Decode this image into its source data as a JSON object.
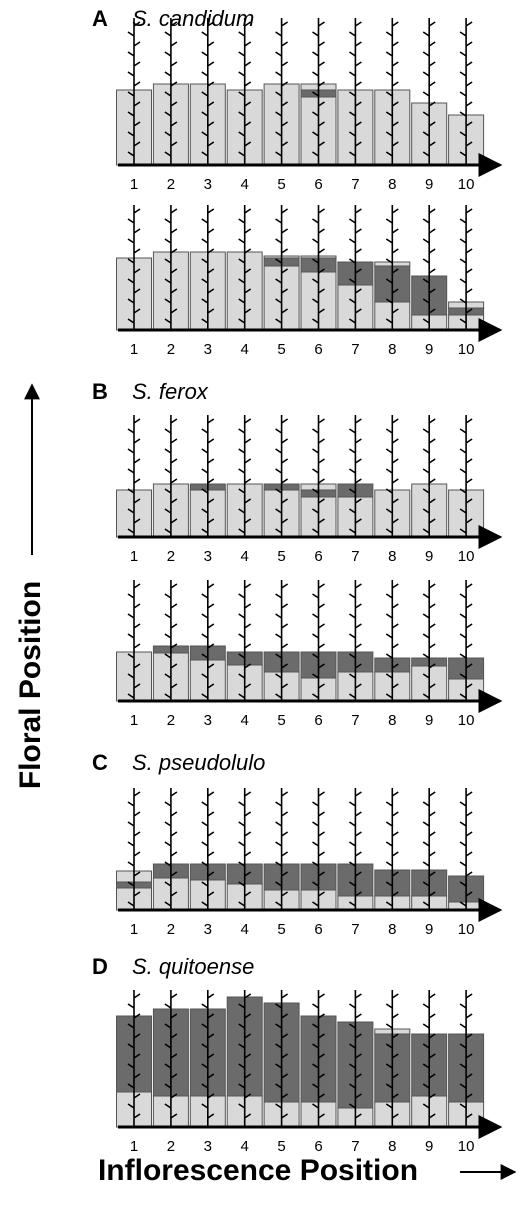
{
  "axis_labels": {
    "y": "Floral Position",
    "x": "Inflorescence Position"
  },
  "chart_data": [
    {
      "type": "bar",
      "label": "A",
      "title": "S. candidum",
      "categories": [
        "1",
        "2",
        "3",
        "4",
        "5",
        "6",
        "7",
        "8",
        "9",
        "10"
      ],
      "series": [
        {
          "color": "#d9d9d9",
          "values": [
            75,
            81,
            81,
            75,
            81,
            68,
            75,
            75,
            62,
            50
          ]
        },
        {
          "color": "#6b6b6b",
          "values": [
            0,
            0,
            0,
            0,
            0,
            7,
            0,
            0,
            0,
            0
          ]
        },
        {
          "color": "#d9d9d9",
          "values": [
            0,
            0,
            0,
            0,
            0,
            6,
            0,
            0,
            0,
            0
          ]
        }
      ]
    },
    {
      "type": "bar",
      "categories": [
        "1",
        "2",
        "3",
        "4",
        "5",
        "6",
        "7",
        "8",
        "9",
        "10"
      ],
      "series": [
        {
          "color": "#d9d9d9",
          "values": [
            72,
            78,
            78,
            78,
            64,
            58,
            45,
            28,
            15,
            15
          ]
        },
        {
          "color": "#6b6b6b",
          "values": [
            0,
            0,
            0,
            0,
            8,
            14,
            23,
            36,
            39,
            7
          ]
        },
        {
          "color": "#d9d9d9",
          "values": [
            0,
            0,
            0,
            0,
            2,
            2,
            0,
            4,
            0,
            6
          ]
        }
      ]
    },
    {
      "type": "bar",
      "label": "B",
      "title": "S. ferox",
      "categories": [
        "1",
        "2",
        "3",
        "4",
        "5",
        "6",
        "7",
        "8",
        "9",
        "10"
      ],
      "series": [
        {
          "color": "#d9d9d9",
          "values": [
            47,
            53,
            47,
            53,
            47,
            40,
            40,
            47,
            53,
            47
          ]
        },
        {
          "color": "#6b6b6b",
          "values": [
            0,
            0,
            6,
            0,
            6,
            7,
            13,
            0,
            0,
            0
          ]
        },
        {
          "color": "#d9d9d9",
          "values": [
            0,
            0,
            0,
            0,
            0,
            6,
            0,
            0,
            0,
            0
          ]
        }
      ]
    },
    {
      "type": "bar",
      "categories": [
        "1",
        "2",
        "3",
        "4",
        "5",
        "6",
        "7",
        "8",
        "9",
        "10"
      ],
      "series": [
        {
          "color": "#d9d9d9",
          "values": [
            49,
            48,
            41,
            36,
            29,
            23,
            29,
            29,
            35,
            22
          ]
        },
        {
          "color": "#6b6b6b",
          "values": [
            0,
            7,
            14,
            13,
            20,
            26,
            20,
            14,
            8,
            21
          ]
        },
        {
          "color": "#d9d9d9",
          "values": [
            0,
            0,
            0,
            0,
            0,
            0,
            0,
            0,
            0,
            0
          ]
        }
      ]
    },
    {
      "type": "bar",
      "label": "C",
      "title": "S. pseudolulo",
      "categories": [
        "1",
        "2",
        "3",
        "4",
        "5",
        "6",
        "7",
        "8",
        "9",
        "10"
      ],
      "series": [
        {
          "color": "#d9d9d9",
          "values": [
            22,
            32,
            30,
            26,
            20,
            20,
            14,
            14,
            14,
            8
          ]
        },
        {
          "color": "#6b6b6b",
          "values": [
            6,
            14,
            16,
            20,
            26,
            26,
            32,
            26,
            26,
            26
          ]
        },
        {
          "color": "#d9d9d9",
          "values": [
            11,
            0,
            0,
            0,
            0,
            0,
            0,
            0,
            0,
            0
          ]
        }
      ]
    },
    {
      "type": "bar",
      "label": "D",
      "title": "S. quitoense",
      "categories": [
        "1",
        "2",
        "3",
        "4",
        "5",
        "6",
        "7",
        "8",
        "9",
        "10"
      ],
      "series": [
        {
          "color": "#d9d9d9",
          "values": [
            35,
            31,
            31,
            31,
            25,
            25,
            19,
            25,
            31,
            25
          ]
        },
        {
          "color": "#6b6b6b",
          "values": [
            76,
            87,
            87,
            99,
            99,
            86,
            86,
            68,
            62,
            68
          ]
        },
        {
          "color": "#d9d9d9",
          "values": [
            0,
            0,
            0,
            0,
            0,
            0,
            0,
            5,
            0,
            0
          ]
        }
      ]
    }
  ]
}
